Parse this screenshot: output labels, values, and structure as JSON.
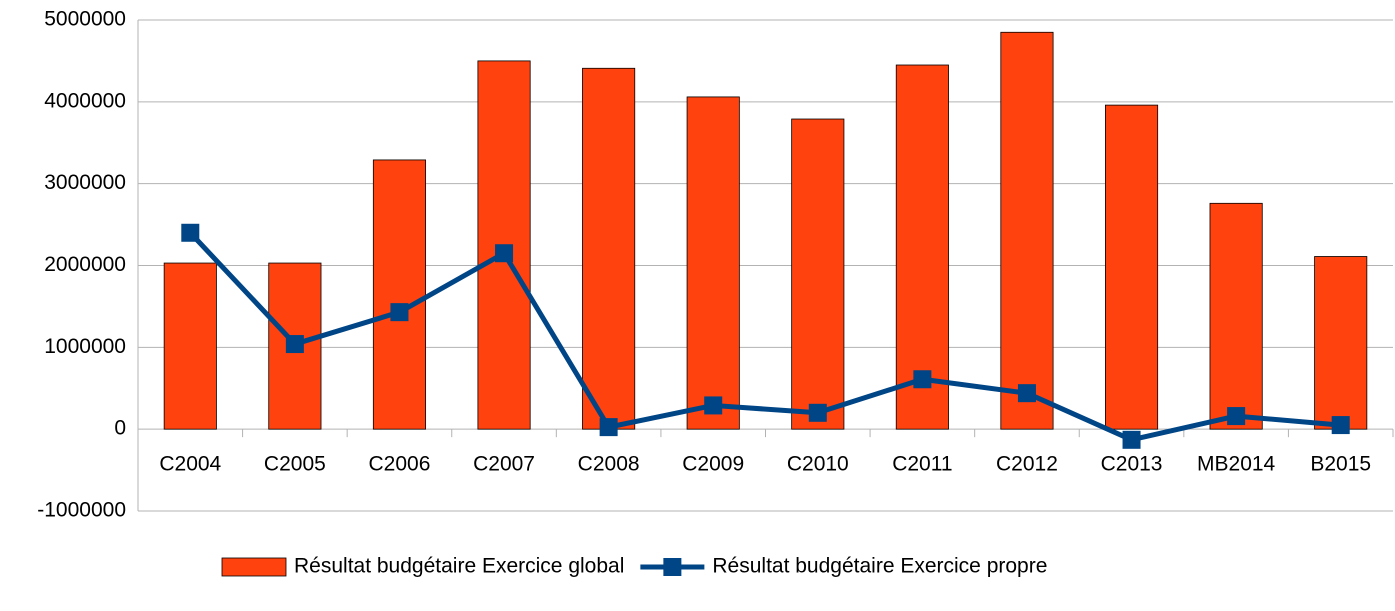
{
  "chart_data": {
    "type": "bar",
    "categories": [
      "C2004",
      "C2005",
      "C2006",
      "C2007",
      "C2008",
      "C2009",
      "C2010",
      "C2011",
      "C2012",
      "C2013",
      "MB2014",
      "B2015"
    ],
    "series": [
      {
        "name": "Résultat budgétaire Exercice global",
        "type": "bar",
        "color": "#ff420e",
        "values": [
          2030000,
          2030000,
          3290000,
          4500000,
          4410000,
          4060000,
          3790000,
          4450000,
          4850000,
          3960000,
          2760000,
          2110000
        ]
      },
      {
        "name": "Résultat budgétaire Exercice propre",
        "type": "line",
        "color": "#004586",
        "values": [
          2400000,
          1040000,
          1430000,
          2150000,
          25000,
          290000,
          200000,
          610000,
          440000,
          -130000,
          160000,
          50000
        ]
      }
    ],
    "ylim": [
      -1000000,
      5000000
    ],
    "yticks": [
      -1000000,
      0,
      1000000,
      2000000,
      3000000,
      4000000,
      5000000
    ],
    "grid": true,
    "legend": "bottom"
  }
}
